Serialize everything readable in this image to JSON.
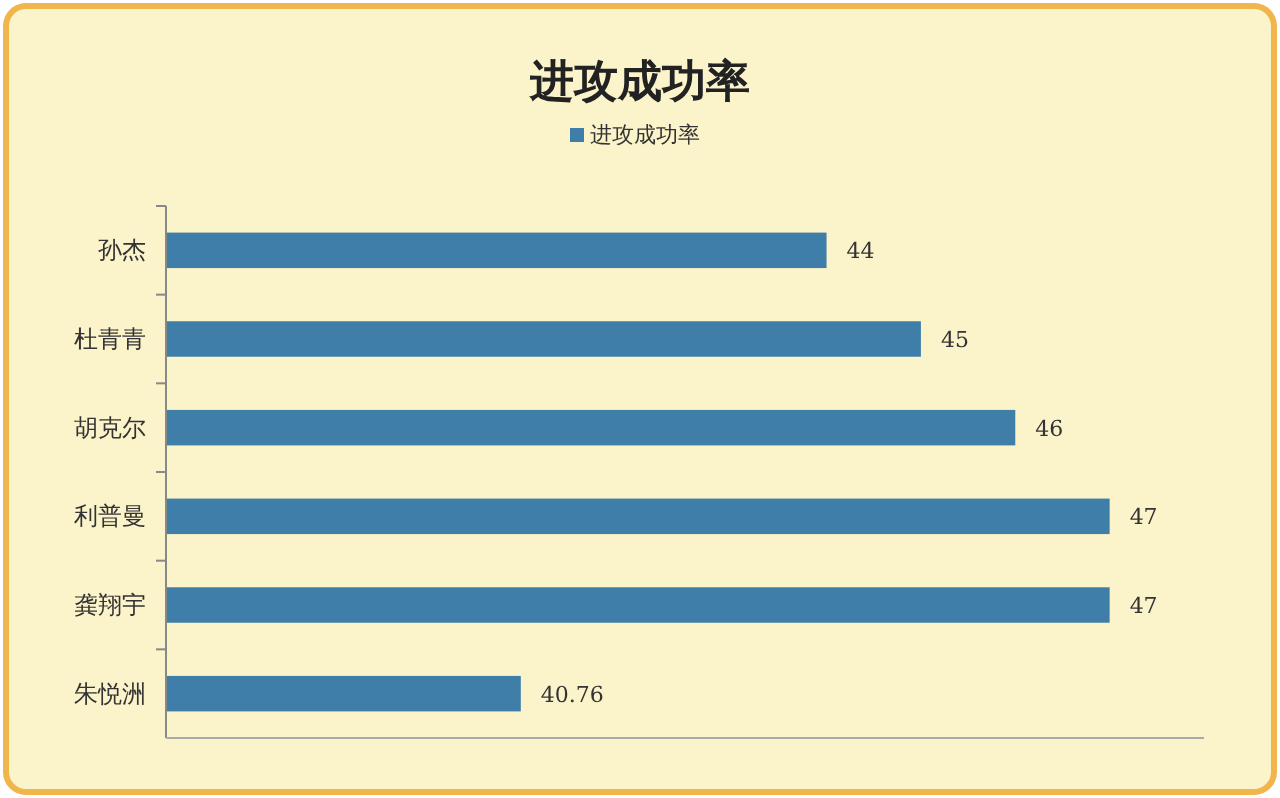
{
  "chart_data": {
    "type": "bar",
    "orientation": "horizontal",
    "title": "进攻成功率",
    "categories": [
      "孙杰",
      "杜青青",
      "胡克尔",
      "利普曼",
      "龚翔宇",
      "朱悦洲"
    ],
    "series": [
      {
        "name": "进攻成功率",
        "color": "#3e7ea8",
        "values": [
          44,
          45,
          46,
          47,
          47,
          40.76
        ]
      }
    ],
    "xlim": [
      37,
      48
    ],
    "tick_labels": "y",
    "data_labels": true,
    "legend": "top"
  }
}
